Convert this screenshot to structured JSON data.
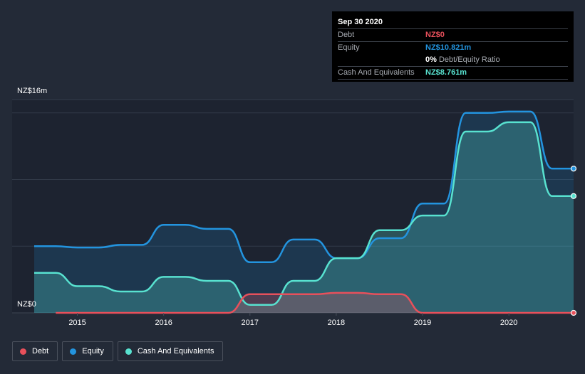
{
  "tooltip": {
    "date": "Sep 30 2020",
    "rows": [
      {
        "label": "Debt",
        "value": "NZ$0",
        "color": "#e8505b"
      },
      {
        "label": "Equity",
        "value": "NZ$10.821m",
        "color": "#2394df"
      },
      {
        "label": "",
        "value": "0%",
        "suffix": "Debt/Equity Ratio",
        "color": "#ffffff"
      },
      {
        "label": "Cash And Equivalents",
        "value": "NZ$8.761m",
        "color": "#58e2d0"
      }
    ]
  },
  "legend": [
    {
      "label": "Debt",
      "color": "#e8505b"
    },
    {
      "label": "Equity",
      "color": "#2394df"
    },
    {
      "label": "Cash And Equivalents",
      "color": "#58e2d0"
    }
  ],
  "chart_data": {
    "type": "area",
    "y_top_label": "NZ$16m",
    "y_bottom_label": "NZ$0",
    "ylim": [
      0,
      16
    ],
    "xlim": [
      2014.5,
      2020.75
    ],
    "x_ticks": [
      2015,
      2016,
      2017,
      2018,
      2019,
      2020
    ],
    "grid": true,
    "series": [
      {
        "name": "Equity",
        "color": "#2394df",
        "points": [
          [
            2014.5,
            5.0
          ],
          [
            2014.75,
            5.0
          ],
          [
            2015.0,
            4.9
          ],
          [
            2015.25,
            4.9
          ],
          [
            2015.5,
            5.1
          ],
          [
            2015.75,
            5.1
          ],
          [
            2016.0,
            6.6
          ],
          [
            2016.25,
            6.6
          ],
          [
            2016.5,
            6.3
          ],
          [
            2016.75,
            6.3
          ],
          [
            2017.0,
            3.8
          ],
          [
            2017.25,
            3.8
          ],
          [
            2017.5,
            5.5
          ],
          [
            2017.75,
            5.5
          ],
          [
            2018.0,
            4.1
          ],
          [
            2018.25,
            4.1
          ],
          [
            2018.5,
            5.6
          ],
          [
            2018.75,
            5.6
          ],
          [
            2019.0,
            8.2
          ],
          [
            2019.25,
            8.2
          ],
          [
            2019.5,
            15.0
          ],
          [
            2019.75,
            15.0
          ],
          [
            2020.0,
            15.1
          ],
          [
            2020.25,
            15.1
          ],
          [
            2020.5,
            10.821
          ],
          [
            2020.75,
            10.821
          ]
        ]
      },
      {
        "name": "Cash And Equivalents",
        "color": "#58e2d0",
        "points": [
          [
            2014.5,
            3.0
          ],
          [
            2014.75,
            3.0
          ],
          [
            2015.0,
            2.0
          ],
          [
            2015.25,
            2.0
          ],
          [
            2015.5,
            1.6
          ],
          [
            2015.75,
            1.6
          ],
          [
            2016.0,
            2.7
          ],
          [
            2016.25,
            2.7
          ],
          [
            2016.5,
            2.4
          ],
          [
            2016.75,
            2.4
          ],
          [
            2017.0,
            0.6
          ],
          [
            2017.25,
            0.6
          ],
          [
            2017.5,
            2.4
          ],
          [
            2017.75,
            2.4
          ],
          [
            2018.0,
            4.1
          ],
          [
            2018.25,
            4.1
          ],
          [
            2018.5,
            6.2
          ],
          [
            2018.75,
            6.2
          ],
          [
            2019.0,
            7.3
          ],
          [
            2019.25,
            7.3
          ],
          [
            2019.5,
            13.6
          ],
          [
            2019.75,
            13.6
          ],
          [
            2020.0,
            14.3
          ],
          [
            2020.25,
            14.3
          ],
          [
            2020.5,
            8.761
          ],
          [
            2020.75,
            8.761
          ]
        ]
      },
      {
        "name": "Debt",
        "color": "#e8505b",
        "points": [
          [
            2014.75,
            0.0
          ],
          [
            2016.75,
            0.0
          ],
          [
            2017.0,
            1.4
          ],
          [
            2017.25,
            1.4
          ],
          [
            2017.5,
            1.4
          ],
          [
            2017.75,
            1.4
          ],
          [
            2018.0,
            1.5
          ],
          [
            2018.25,
            1.5
          ],
          [
            2018.5,
            1.4
          ],
          [
            2018.75,
            1.4
          ],
          [
            2019.0,
            0.0
          ],
          [
            2020.75,
            0.0
          ]
        ]
      }
    ]
  }
}
